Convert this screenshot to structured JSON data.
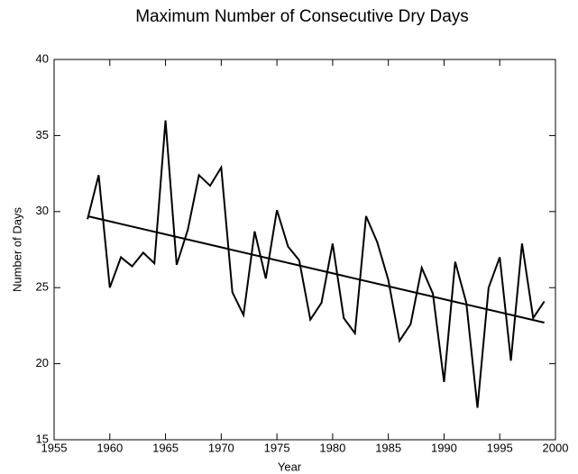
{
  "chart_data": {
    "type": "line",
    "title": "Maximum Number of Consecutive Dry Days",
    "xlabel": "Year",
    "ylabel": "Number of Days",
    "x": [
      1958,
      1959,
      1960,
      1961,
      1962,
      1963,
      1964,
      1965,
      1966,
      1967,
      1968,
      1969,
      1970,
      1971,
      1972,
      1973,
      1974,
      1975,
      1976,
      1977,
      1978,
      1979,
      1980,
      1981,
      1982,
      1983,
      1984,
      1985,
      1986,
      1987,
      1988,
      1989,
      1990,
      1991,
      1992,
      1993,
      1994,
      1995,
      1996,
      1997,
      1998,
      1999
    ],
    "series": [
      {
        "color": "#000000",
        "values": [
          29.5,
          32.4,
          25.0,
          27.0,
          26.4,
          27.3,
          26.6,
          36.0,
          26.5,
          28.8,
          32.4,
          31.7,
          32.9,
          24.7,
          23.2,
          28.7,
          25.6,
          30.1,
          27.7,
          26.8,
          22.9,
          24.0,
          27.9,
          23.0,
          22.0,
          29.7,
          28.0,
          25.5,
          21.5,
          22.6,
          26.3,
          24.6,
          18.8,
          26.7,
          24.0,
          17.1,
          25.0,
          27.0,
          20.2,
          27.9,
          23.0,
          24.1
        ]
      }
    ],
    "trend_line": {
      "color": "#000000",
      "x": [
        1958,
        1999
      ],
      "values": [
        29.7,
        22.7
      ]
    },
    "xlim": [
      1955,
      2000
    ],
    "xticks": [
      1955,
      1960,
      1965,
      1970,
      1975,
      1980,
      1985,
      1990,
      1995,
      2000
    ],
    "ylim": [
      15,
      40
    ],
    "yticks": [
      15,
      20,
      25,
      30,
      35,
      40
    ],
    "grid": false
  }
}
